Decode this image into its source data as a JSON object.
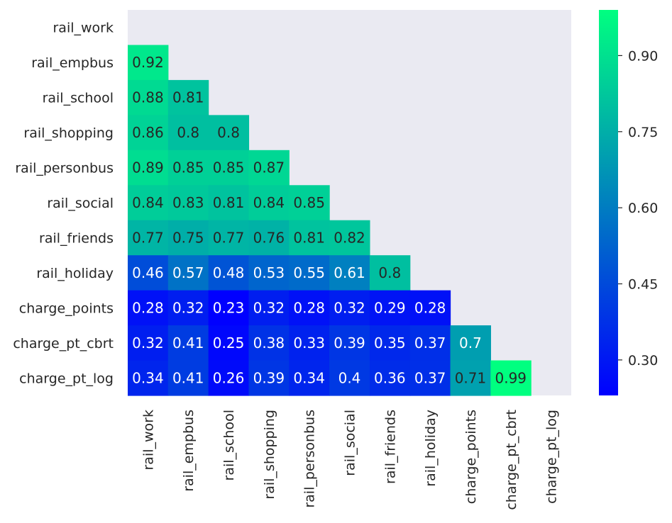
{
  "chart_data": {
    "type": "heatmap",
    "title": "",
    "xlabel": "",
    "ylabel": "",
    "mask": "upper-triangle-including-diagonal",
    "colormap": "winter",
    "background_color": "#eaeaf2",
    "rows": [
      "rail_work",
      "rail_empbus",
      "rail_school",
      "rail_shopping",
      "rail_personbus",
      "rail_social",
      "rail_friends",
      "rail_holiday",
      "charge_points",
      "charge_pt_cbrt",
      "charge_pt_log"
    ],
    "columns": [
      "rail_work",
      "rail_empbus",
      "rail_school",
      "rail_shopping",
      "rail_personbus",
      "rail_social",
      "rail_friends",
      "rail_holiday",
      "charge_points",
      "charge_pt_cbrt",
      "charge_pt_log"
    ],
    "values": [
      [],
      [
        "0.92"
      ],
      [
        "0.88",
        "0.81"
      ],
      [
        "0.86",
        "0.8",
        "0.8"
      ],
      [
        "0.89",
        "0.85",
        "0.85",
        "0.87"
      ],
      [
        "0.84",
        "0.83",
        "0.81",
        "0.84",
        "0.85"
      ],
      [
        "0.77",
        "0.75",
        "0.77",
        "0.76",
        "0.81",
        "0.82"
      ],
      [
        "0.46",
        "0.57",
        "0.48",
        "0.53",
        "0.55",
        "0.61",
        "0.8"
      ],
      [
        "0.28",
        "0.32",
        "0.23",
        "0.32",
        "0.28",
        "0.32",
        "0.29",
        "0.28"
      ],
      [
        "0.32",
        "0.41",
        "0.25",
        "0.38",
        "0.33",
        "0.39",
        "0.35",
        "0.37",
        "0.7"
      ],
      [
        "0.34",
        "0.41",
        "0.26",
        "0.39",
        "0.34",
        "0.4",
        "0.36",
        "0.37",
        "0.71",
        "0.99"
      ]
    ],
    "colorbar": {
      "range": [
        0.23,
        0.99
      ],
      "ticks": [
        "0.30",
        "0.45",
        "0.60",
        "0.75",
        "0.90"
      ],
      "colors": [
        "#0000ff",
        "#00ff80"
      ]
    }
  }
}
